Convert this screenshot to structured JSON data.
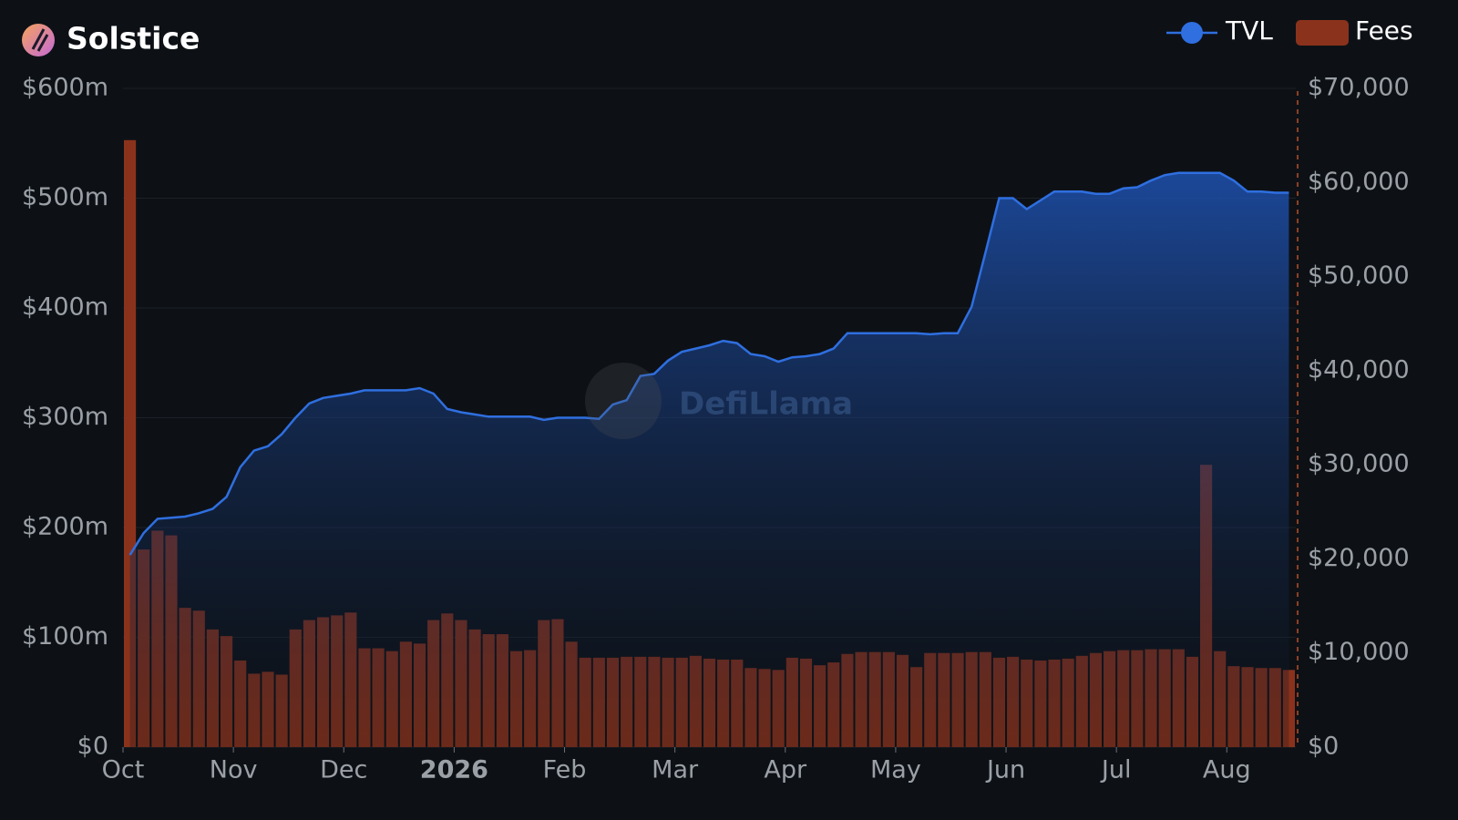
{
  "chart_data": {
    "type": "combo",
    "title": "Solstice",
    "watermark": "DefiLlama",
    "categories": [
      "Oct",
      null,
      null,
      null,
      null,
      null,
      null,
      null,
      "Nov",
      null,
      null,
      null,
      null,
      null,
      null,
      null,
      "Dec",
      null,
      null,
      null,
      null,
      null,
      null,
      null,
      "2026",
      null,
      null,
      null,
      null,
      null,
      null,
      null,
      "Feb",
      null,
      null,
      null,
      null,
      null,
      null,
      null,
      "Mar",
      null,
      null,
      null,
      null,
      null,
      null,
      null,
      "Apr",
      null,
      null,
      null,
      null,
      null,
      null,
      null,
      "May",
      null,
      null,
      null,
      null,
      null,
      null,
      null,
      "Jun",
      null,
      null,
      null,
      null,
      null,
      null,
      null,
      "Jul",
      null,
      null,
      null,
      null,
      null,
      null,
      null,
      "Aug",
      null,
      null,
      null,
      null
    ],
    "series": [
      {
        "name": "TVL",
        "type": "area",
        "color": "#2f6fe0",
        "axis": "y",
        "values": [
          175,
          195,
          208,
          209,
          210,
          213,
          217,
          228,
          255,
          270,
          274,
          285,
          300,
          313,
          318,
          320,
          322,
          325,
          325,
          325,
          325,
          327,
          322,
          308,
          305,
          303,
          301,
          301,
          301,
          301,
          298,
          300,
          300,
          300,
          299,
          312,
          316,
          338,
          340,
          352,
          360,
          363,
          366,
          370,
          368,
          358,
          356,
          351,
          355,
          356,
          358,
          363,
          377,
          377,
          377,
          377,
          377,
          377,
          376,
          377,
          377,
          401,
          450,
          500,
          500,
          490,
          498,
          506,
          506,
          506,
          504,
          504,
          509,
          510,
          516,
          521,
          523,
          523,
          523,
          523,
          516,
          506,
          506,
          505,
          505
        ]
      },
      {
        "name": "Fees",
        "type": "bar",
        "color": "#8b321c",
        "axis": "y2",
        "values": [
          64500,
          21000,
          23000,
          22500,
          14800,
          14500,
          12500,
          11800,
          9200,
          7800,
          8000,
          7700,
          12500,
          13500,
          13800,
          14000,
          14300,
          10500,
          10500,
          10200,
          11200,
          11000,
          13500,
          14200,
          13500,
          12500,
          12000,
          12000,
          10200,
          10300,
          13500,
          13600,
          11200,
          9500,
          9500,
          9500,
          9600,
          9600,
          9600,
          9500,
          9500,
          9700,
          9400,
          9300,
          9300,
          8400,
          8300,
          8200,
          9500,
          9400,
          8700,
          9000,
          9900,
          10100,
          10100,
          10100,
          9800,
          8500,
          10000,
          10000,
          10000,
          10100,
          10100,
          9500,
          9600,
          9300,
          9200,
          9300,
          9400,
          9700,
          10000,
          10200,
          10300,
          10300,
          10400,
          10400,
          10400,
          9600,
          30000,
          10200,
          8600,
          8500,
          8400,
          8400,
          8200
        ]
      }
    ],
    "ylim": [
      0,
      600
    ],
    "yticks": [
      {
        "value": 0,
        "label": "$0"
      },
      {
        "value": 100,
        "label": "$100m"
      },
      {
        "value": 200,
        "label": "$200m"
      },
      {
        "value": 300,
        "label": "$300m"
      },
      {
        "value": 400,
        "label": "$400m"
      },
      {
        "value": 500,
        "label": "$500m"
      },
      {
        "value": 600,
        "label": "$600m"
      }
    ],
    "y2lim": [
      0,
      70000
    ],
    "y2ticks": [
      {
        "value": 0,
        "label": "$0"
      },
      {
        "value": 10000,
        "label": "$10,000"
      },
      {
        "value": 20000,
        "label": "$20,000"
      },
      {
        "value": 30000,
        "label": "$30,000"
      },
      {
        "value": 40000,
        "label": "$40,000"
      },
      {
        "value": 50000,
        "label": "$50,000"
      },
      {
        "value": 60000,
        "label": "$60,000"
      },
      {
        "value": 70000,
        "label": "$70,000"
      }
    ],
    "grid": true
  }
}
